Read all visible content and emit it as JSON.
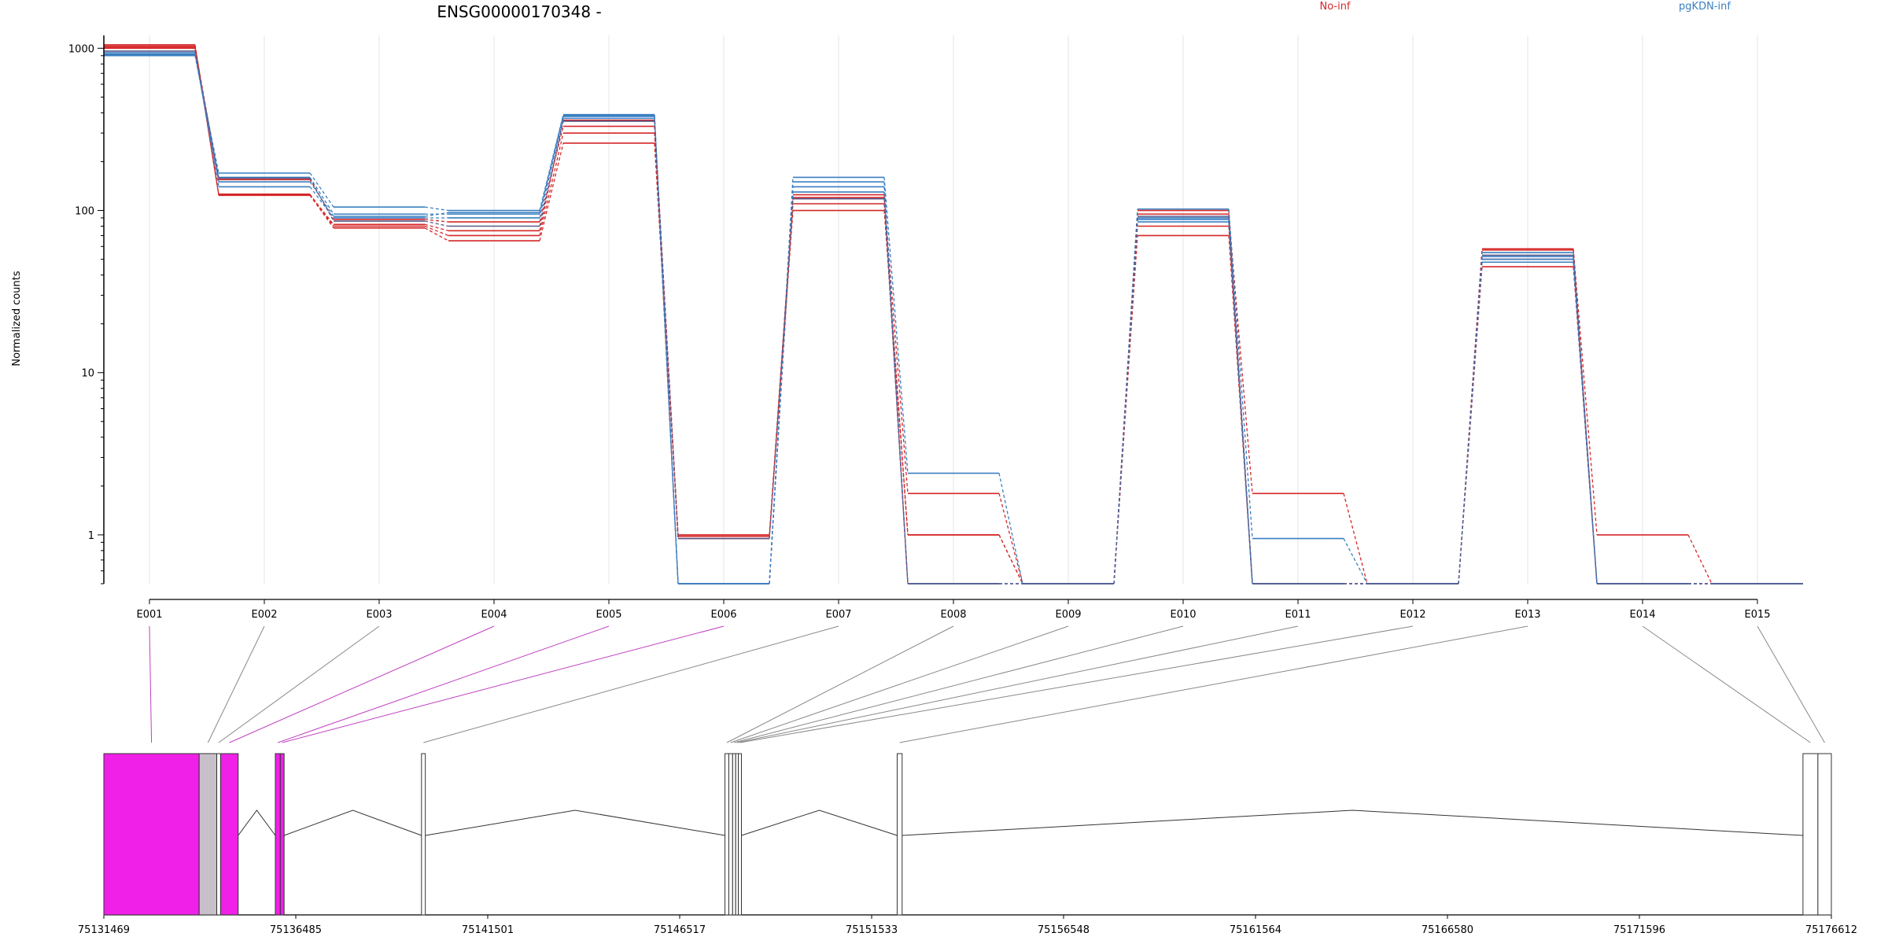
{
  "chart_data": {
    "type": "line",
    "title": "ENSG00000170348 -",
    "ylabel": "Normalized counts",
    "xlabel": "",
    "y_scale": "log",
    "ylim": [
      0.5,
      1200
    ],
    "y_ticks": [
      1,
      10,
      100,
      1000
    ],
    "y_tick_labels": [
      "1",
      "10",
      "100",
      "1000"
    ],
    "categories": [
      "E001",
      "E002",
      "E003",
      "E004",
      "E005",
      "E006",
      "E007",
      "E008",
      "E009",
      "E010",
      "E011",
      "E012",
      "E013",
      "E014",
      "E015"
    ],
    "legend_position": "top",
    "grid": "vertical",
    "colors": {
      "No-inf": "#d62728",
      "pgKDN-inf": "#3a7fc1",
      "other": "#5a5a8a"
    },
    "series": [
      {
        "name": "No-inf",
        "values": [
          1050,
          125,
          82,
          75,
          360,
          1.0,
          120,
          1.8,
          0.5,
          95,
          1.8,
          0.5,
          58,
          1.0,
          0.5
        ]
      },
      {
        "name": "No-inf",
        "values": [
          1000,
          126,
          80,
          70,
          300,
          0.95,
          110,
          1.0,
          0.5,
          80,
          0.5,
          0.5,
          50,
          0.5,
          0.5
        ]
      },
      {
        "name": "No-inf",
        "values": [
          1030,
          124,
          78,
          65,
          260,
          0.98,
          100,
          1.0,
          0.5,
          70,
          0.5,
          0.5,
          45,
          0.5,
          0.5
        ]
      },
      {
        "name": "No-inf",
        "values": [
          1010,
          155,
          88,
          85,
          330,
          0.5,
          125,
          0.5,
          0.5,
          100,
          0.5,
          0.5,
          57,
          0.5,
          0.5
        ]
      },
      {
        "name": "pgKDN-inf",
        "values": [
          900,
          170,
          105,
          100,
          390,
          0.5,
          160,
          2.4,
          0.5,
          102,
          0.95,
          0.5,
          55,
          0.5,
          0.5
        ]
      },
      {
        "name": "pgKDN-inf",
        "values": [
          920,
          160,
          95,
          95,
          380,
          0.5,
          150,
          0.5,
          0.5,
          90,
          0.5,
          0.5,
          52,
          0.5,
          0.5
        ]
      },
      {
        "name": "pgKDN-inf",
        "values": [
          940,
          140,
          90,
          90,
          370,
          0.5,
          140,
          0.5,
          0.5,
          88,
          0.5,
          0.5,
          50,
          0.5,
          0.5
        ]
      },
      {
        "name": "pgKDN-inf",
        "values": [
          910,
          150,
          92,
          97,
          385,
          0.5,
          130,
          0.5,
          0.5,
          85,
          0.5,
          0.5,
          48,
          0.5,
          0.5
        ]
      },
      {
        "values": [
          960,
          158,
          86,
          80,
          355,
          0.95,
          118,
          0.5,
          0.5,
          92,
          0.5,
          0.5,
          53,
          0.5,
          0.5
        ]
      }
    ],
    "gene_model": {
      "x_tick_labels": [
        "75131469",
        "75136485",
        "75141501",
        "75146517",
        "75151533",
        "75156548",
        "75161564",
        "75166580",
        "75171596",
        "75176612"
      ],
      "x_ticks": [
        75131469,
        75136485,
        75141501,
        75146517,
        75151533,
        75156548,
        75161564,
        75166580,
        75171596,
        75176612
      ],
      "xlim": [
        75131469,
        75176612
      ],
      "exon_regions": [
        {
          "exon": "E001",
          "start": 75131469,
          "end": 75133960,
          "highlight": true
        },
        {
          "exon": "E002",
          "start": 75133960,
          "end": 75134420,
          "highlight": false
        },
        {
          "exon": "E003",
          "start": 75134420,
          "end": 75134520,
          "highlight": false
        },
        {
          "exon": "E004",
          "start": 75134520,
          "end": 75134980,
          "highlight": true
        },
        {
          "exon": "E005",
          "start": 75135950,
          "end": 75136080,
          "highlight": true
        },
        {
          "exon": "E006",
          "start": 75136080,
          "end": 75136180,
          "highlight": true
        },
        {
          "exon": "E007",
          "start": 75139770,
          "end": 75139870,
          "highlight": false
        },
        {
          "exon": "E008",
          "start": 75147700,
          "end": 75147800,
          "highlight": false
        },
        {
          "exon": "E009",
          "start": 75147800,
          "end": 75147900,
          "highlight": false
        },
        {
          "exon": "E010",
          "start": 75147900,
          "end": 75147980,
          "highlight": false
        },
        {
          "exon": "E011",
          "start": 75147980,
          "end": 75148050,
          "highlight": false
        },
        {
          "exon": "E012",
          "start": 75148050,
          "end": 75148130,
          "highlight": false
        },
        {
          "exon": "E013",
          "start": 75152200,
          "end": 75152330,
          "highlight": false
        },
        {
          "exon": "E014",
          "start": 75175870,
          "end": 75176260,
          "highlight": false
        },
        {
          "exon": "E015",
          "start": 75176260,
          "end": 75176612,
          "highlight": false
        }
      ]
    }
  }
}
